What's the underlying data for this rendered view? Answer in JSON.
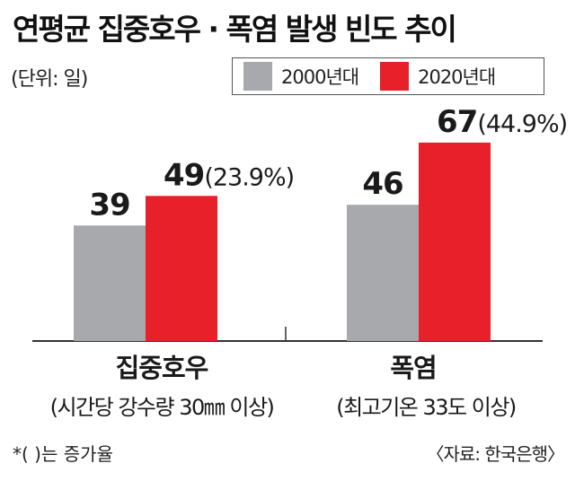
{
  "title": "연평균 집중호우 · 폭염 발생 빈도 추이",
  "unit_label": "(단위: 일)",
  "legend": [
    {
      "label": "2000년대",
      "color": "#a7a9ac"
    },
    {
      "label": "2020년대",
      "color": "#e8202a"
    }
  ],
  "footnote": "*(  )는 증가율",
  "source": "〈자료: 한국은행〉",
  "chart_data": {
    "type": "bar",
    "categories": [
      "집중호우",
      "폭염"
    ],
    "category_sublabels": [
      "(시간당 강수량 30㎜ 이상)",
      "(최고기온 33도 이상)"
    ],
    "series": [
      {
        "name": "2000년대",
        "values": [
          39,
          46
        ],
        "labels": [
          "39",
          "46"
        ],
        "color": "#a7a9ac"
      },
      {
        "name": "2020년대",
        "values": [
          49,
          67
        ],
        "labels": [
          "49",
          "67"
        ],
        "growth_labels": [
          "(23.9%)",
          "(44.9%)"
        ],
        "color": "#e8202a"
      }
    ]
  }
}
